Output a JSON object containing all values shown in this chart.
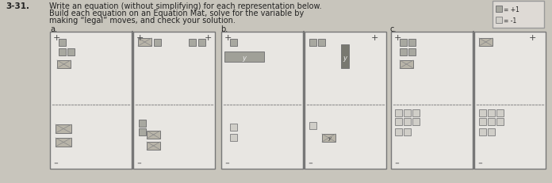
{
  "bg": "#c8c5bc",
  "panel_bg": "#e8e6e2",
  "panel_ec": "#777777",
  "dash_color": "#999999",
  "tile_x_fc": "#b8b4a8",
  "tile_x_ec": "#777777",
  "tile_pos_fc": "#a8a8a0",
  "tile_pos_ec": "#777777",
  "tile_neg_fc": "#d0cec8",
  "tile_neg_ec": "#888888",
  "tile_var_fc": "#a0a098",
  "tile_var_dark": "#787870",
  "text_color": "#222222",
  "prob_num": "3-31.",
  "line1": "Write an equation (without simplifying) for each representation below.",
  "line2": "Build each equation on an Equation Mat, solve for the variable by",
  "line3": "making “legal” moves, and check your solution.",
  "parts": [
    "a.",
    "b.",
    "c."
  ]
}
